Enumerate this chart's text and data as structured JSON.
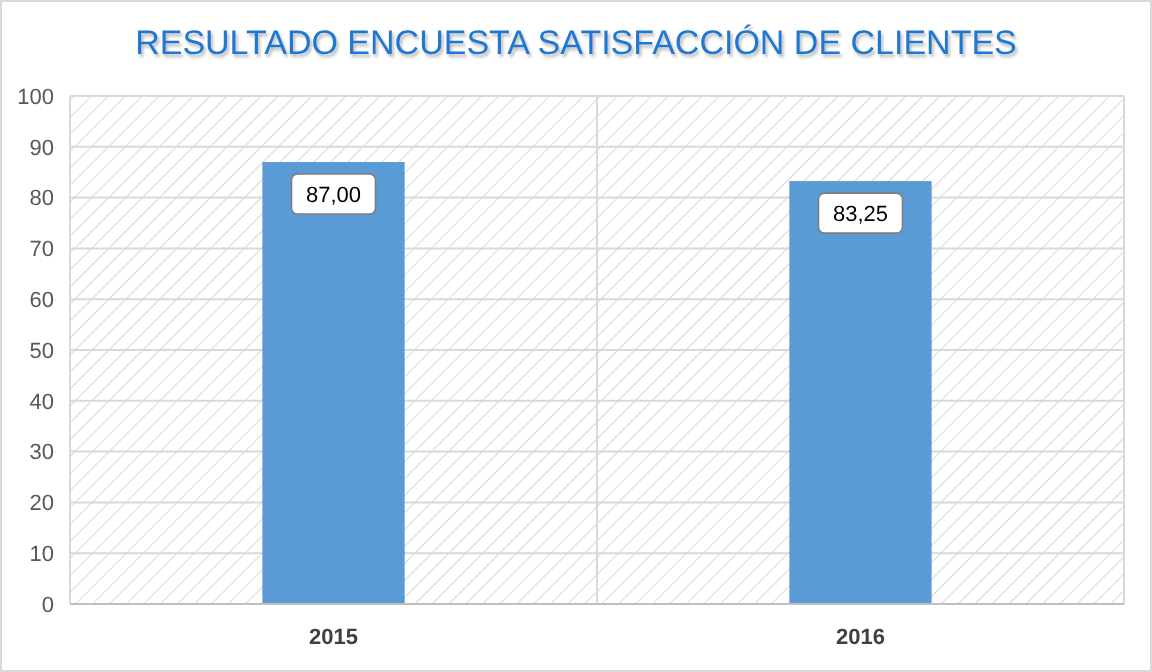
{
  "chart_data": {
    "type": "bar",
    "title": "RESULTADO ENCUESTA SATISFACCIÓN DE CLIENTES",
    "categories": [
      "2015",
      "2016"
    ],
    "values": [
      87,
      83.25
    ],
    "value_labels": [
      "87,00",
      "83,25"
    ],
    "color": "#5b9bd5",
    "ylim": [
      0,
      100
    ],
    "yticks": [
      0,
      10,
      20,
      30,
      40,
      50,
      60,
      70,
      80,
      90,
      100
    ],
    "grid": true
  }
}
